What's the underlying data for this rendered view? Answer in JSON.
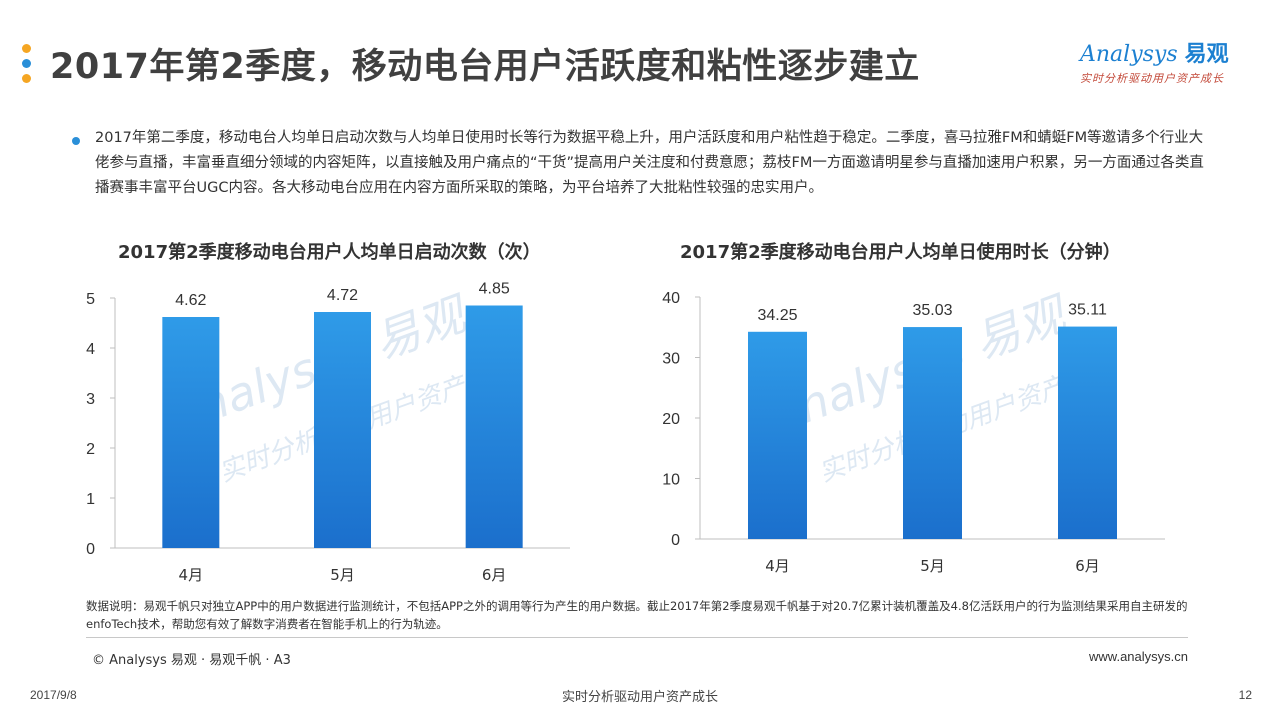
{
  "header": {
    "title": "2017年第2季度，移动电台用户活跃度和粘性逐步建立",
    "dot_colors": [
      "#f5a623",
      "#2a8fd8",
      "#f5a623"
    ],
    "logo_main": "Analysys",
    "logo_cn": "易观",
    "logo_slogan": "实时分析驱动用户资产成长"
  },
  "summary": "2017年第二季度，移动电台人均单日启动次数与人均单日使用时长等行为数据平稳上升，用户活跃度和用户粘性趋于稳定。二季度，喜马拉雅FM和蜻蜓FM等邀请多个行业大佬参与直播，丰富垂直细分领域的内容矩阵，以直接触及用户痛点的“干货”提高用户关注度和付费意愿；荔枝FM一方面邀请明星参与直播加速用户积累，另一方面通过各类直播赛事丰富平台UGC内容。各大移动电台应用在内容方面所采取的策略，为平台培养了大批粘性较强的忠实用户。",
  "chart_data": [
    {
      "type": "bar",
      "title": "2017第2季度移动电台用户人均单日启动次数（次）",
      "categories": [
        "4月",
        "5月",
        "6月"
      ],
      "values": [
        4.62,
        4.72,
        4.85
      ],
      "value_labels": [
        "4.62",
        "4.72",
        "4.85"
      ],
      "ylim": [
        0,
        5
      ],
      "yticks": [
        "0",
        "1",
        "2",
        "3",
        "4",
        "5"
      ],
      "grid": false,
      "bar_color_top": "#2f9be8",
      "bar_color_bottom": "#1b6fcc"
    },
    {
      "type": "bar",
      "title": "2017第2季度移动电台用户人均单日使用时长（分钟）",
      "categories": [
        "4月",
        "5月",
        "6月"
      ],
      "values": [
        34.25,
        35.03,
        35.11
      ],
      "value_labels": [
        "34.25",
        "35.03",
        "35.11"
      ],
      "ylim": [
        0,
        40
      ],
      "yticks": [
        "0",
        "10",
        "20",
        "30",
        "40"
      ],
      "grid": false,
      "bar_color_top": "#2f9be8",
      "bar_color_bottom": "#1b6fcc"
    }
  ],
  "note": "数据说明：易观千帆只对独立APP中的用户数据进行监测统计，不包括APP之外的调用等行为产生的用户数据。截止2017年第2季度易观千帆基于对20.7亿累计装机覆盖及4.8亿活跃用户的行为监测结果采用自主研发的enfoTech技术，帮助您有效了解数字消费者在智能手机上的行为轨迹。",
  "footer": {
    "copyright": "© Analysys 易观 · 易观千帆 · A3",
    "website": "www.analysys.cn",
    "date": "2017/9/8",
    "center": "实时分析驱动用户资产成长",
    "page": "12"
  }
}
